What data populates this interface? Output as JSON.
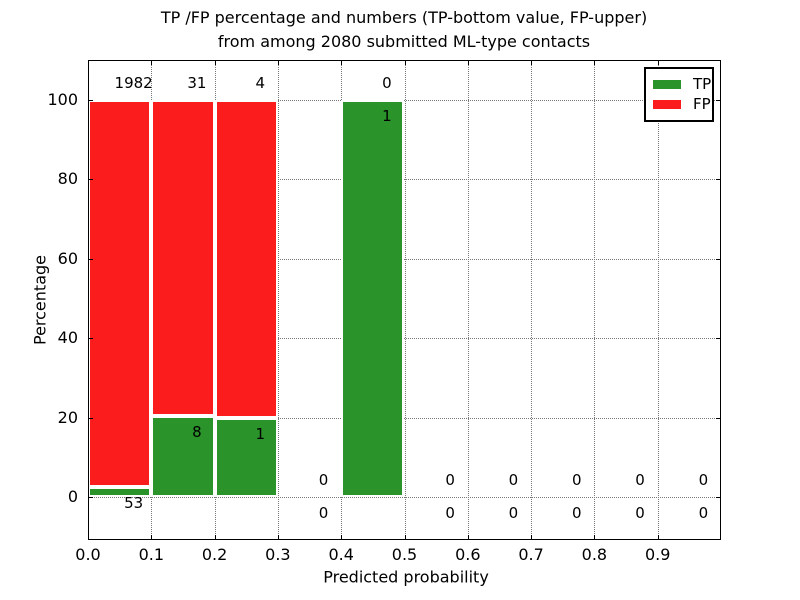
{
  "title": {
    "line1": "TP /FP percentage and numbers (TP-bottom value, FP-upper)",
    "line2": "from among 2080 submitted ML-type contacts"
  },
  "axes": {
    "xlabel": "Predicted probability",
    "ylabel": "Percentage"
  },
  "legend": {
    "items": [
      {
        "label": "TP",
        "color": "#2a932a"
      },
      {
        "label": "FP",
        "color": "#fb1d1d"
      }
    ]
  },
  "colors": {
    "tp": "#2a932a",
    "fp": "#fb1d1d",
    "grid": "#777777",
    "spine": "#000000",
    "background": "#ffffff"
  },
  "chart_data": {
    "type": "bar",
    "stacked": true,
    "title": "TP /FP percentage and numbers (TP-bottom value, FP-upper)\nfrom among 2080 submitted ML-type contacts",
    "xlabel": "Predicted probability",
    "ylabel": "Percentage",
    "xlim": [
      0.0,
      1.0
    ],
    "ylim": [
      -10.8,
      110.0
    ],
    "xticks": [
      "0.0",
      "0.1",
      "0.2",
      "0.3",
      "0.4",
      "0.5",
      "0.6",
      "0.7",
      "0.8",
      "0.9"
    ],
    "yticks": [
      0,
      20,
      40,
      60,
      80,
      100
    ],
    "grid": true,
    "legend_position": "upper right",
    "total_contacts": 2080,
    "bins": [
      {
        "x_range": [
          0.0,
          0.1
        ],
        "tp_count": 53,
        "fp_count": 1982,
        "tp_pct": 2.6,
        "fp_pct": 97.4
      },
      {
        "x_range": [
          0.1,
          0.2
        ],
        "tp_count": 8,
        "fp_count": 31,
        "tp_pct": 20.5,
        "fp_pct": 79.5
      },
      {
        "x_range": [
          0.2,
          0.3
        ],
        "tp_count": 1,
        "fp_count": 4,
        "tp_pct": 20.0,
        "fp_pct": 80.0
      },
      {
        "x_range": [
          0.3,
          0.4
        ],
        "tp_count": 0,
        "fp_count": 0,
        "tp_pct": 0,
        "fp_pct": 0
      },
      {
        "x_range": [
          0.4,
          0.5
        ],
        "tp_count": 1,
        "fp_count": 0,
        "tp_pct": 100.0,
        "fp_pct": 0
      },
      {
        "x_range": [
          0.5,
          0.6
        ],
        "tp_count": 0,
        "fp_count": 0,
        "tp_pct": 0,
        "fp_pct": 0
      },
      {
        "x_range": [
          0.6,
          0.7
        ],
        "tp_count": 0,
        "fp_count": 0,
        "tp_pct": 0,
        "fp_pct": 0
      },
      {
        "x_range": [
          0.7,
          0.8
        ],
        "tp_count": 0,
        "fp_count": 0,
        "tp_pct": 0,
        "fp_pct": 0
      },
      {
        "x_range": [
          0.8,
          0.9
        ],
        "tp_count": 0,
        "fp_count": 0,
        "tp_pct": 0,
        "fp_pct": 0
      },
      {
        "x_range": [
          0.9,
          1.0
        ],
        "tp_count": 0,
        "fp_count": 0,
        "tp_pct": 0,
        "fp_pct": 0
      }
    ],
    "series": [
      {
        "name": "TP",
        "color": "#2a932a",
        "values_pct": [
          2.6,
          20.5,
          20.0,
          0,
          100.0,
          0,
          0,
          0,
          0,
          0
        ],
        "counts": [
          53,
          8,
          1,
          0,
          1,
          0,
          0,
          0,
          0,
          0
        ]
      },
      {
        "name": "FP",
        "color": "#fb1d1d",
        "values_pct": [
          97.4,
          79.5,
          80.0,
          0,
          0,
          0,
          0,
          0,
          0,
          0
        ],
        "counts": [
          1982,
          31,
          4,
          0,
          0,
          0,
          0,
          0,
          0,
          0
        ]
      }
    ]
  }
}
